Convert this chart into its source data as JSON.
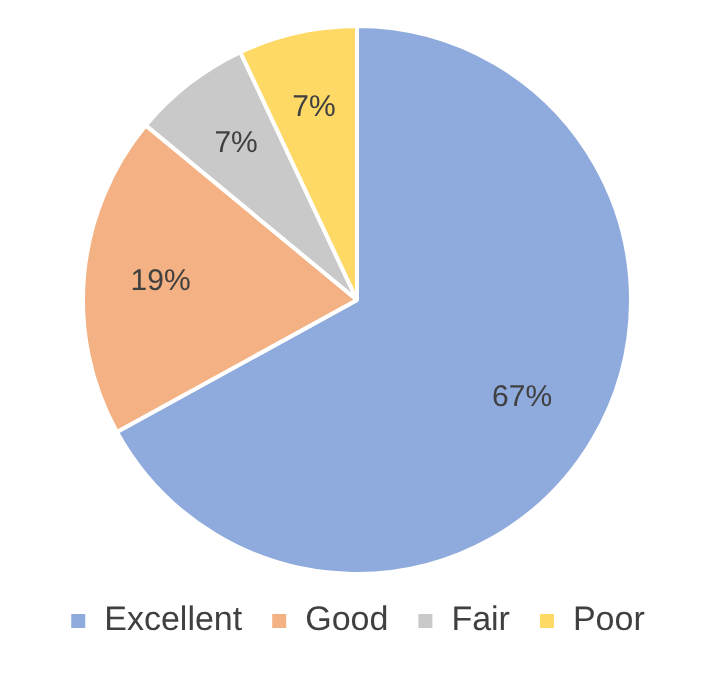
{
  "chart_data": {
    "type": "pie",
    "categories": [
      "Excellent",
      "Good",
      "Fair",
      "Poor"
    ],
    "values": [
      67,
      19,
      7,
      7
    ],
    "colors": [
      "#8faadc",
      "#f4b183",
      "#c9c9c9",
      "#ffd966"
    ],
    "value_labels": [
      "67%",
      "19%",
      "7%",
      "7%"
    ],
    "legend": "bottom"
  }
}
